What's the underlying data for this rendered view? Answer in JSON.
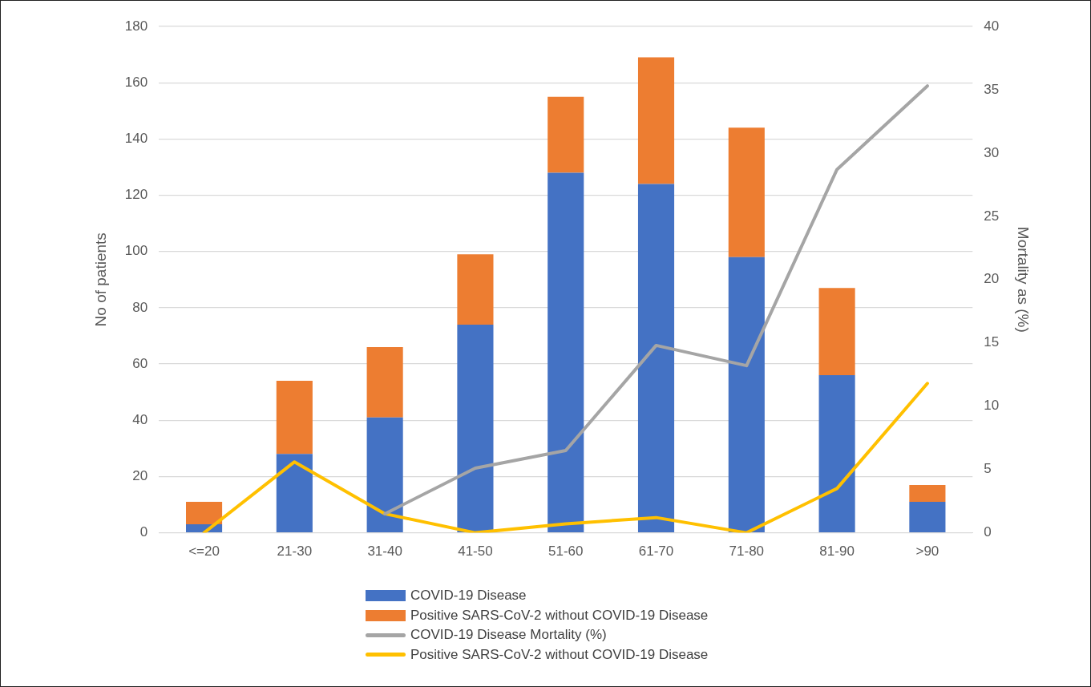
{
  "chart_data": {
    "type": "bar",
    "stacked": true,
    "categories": [
      "<=20",
      "21-30",
      "31-40",
      "41-50",
      "51-60",
      "61-70",
      "71-80",
      "81-90",
      ">90"
    ],
    "ylabel": "No of patients",
    "y2label": "Mortality as (%)",
    "ylim": [
      0,
      180
    ],
    "yticks": [
      0,
      20,
      40,
      60,
      80,
      100,
      120,
      140,
      160,
      180
    ],
    "y2lim": [
      0,
      40
    ],
    "y2ticks": [
      0,
      5,
      10,
      15,
      20,
      25,
      30,
      35,
      40
    ],
    "grid": "y",
    "legend": "bottom",
    "marker": "none",
    "line_style": "solid",
    "series": [
      {
        "name": "COVID-19 Disease",
        "color": "#4472c4",
        "values": [
          3,
          28,
          41,
          74,
          128,
          124,
          98,
          56,
          11
        ]
      },
      {
        "name": "Positive SARS-CoV-2 without COVID-19 Disease",
        "color": "#ed7d31",
        "values": [
          8,
          26,
          25,
          25,
          27,
          45,
          46,
          31,
          6
        ]
      },
      {
        "name": "COVID-19 Disease Mortality (%)",
        "type": "line",
        "axis": "y2",
        "color": "#a5a5a5",
        "values": [
          null,
          null,
          1.5,
          5.1,
          6.5,
          14.8,
          13.2,
          28.7,
          35.3
        ]
      },
      {
        "name": "Positive SARS-CoV-2 without COVID-19 Disease",
        "type": "line",
        "axis": "y2",
        "color": "#ffc000",
        "values": [
          0,
          5.6,
          1.5,
          0,
          0.7,
          1.2,
          0,
          3.5,
          11.8
        ]
      }
    ]
  }
}
